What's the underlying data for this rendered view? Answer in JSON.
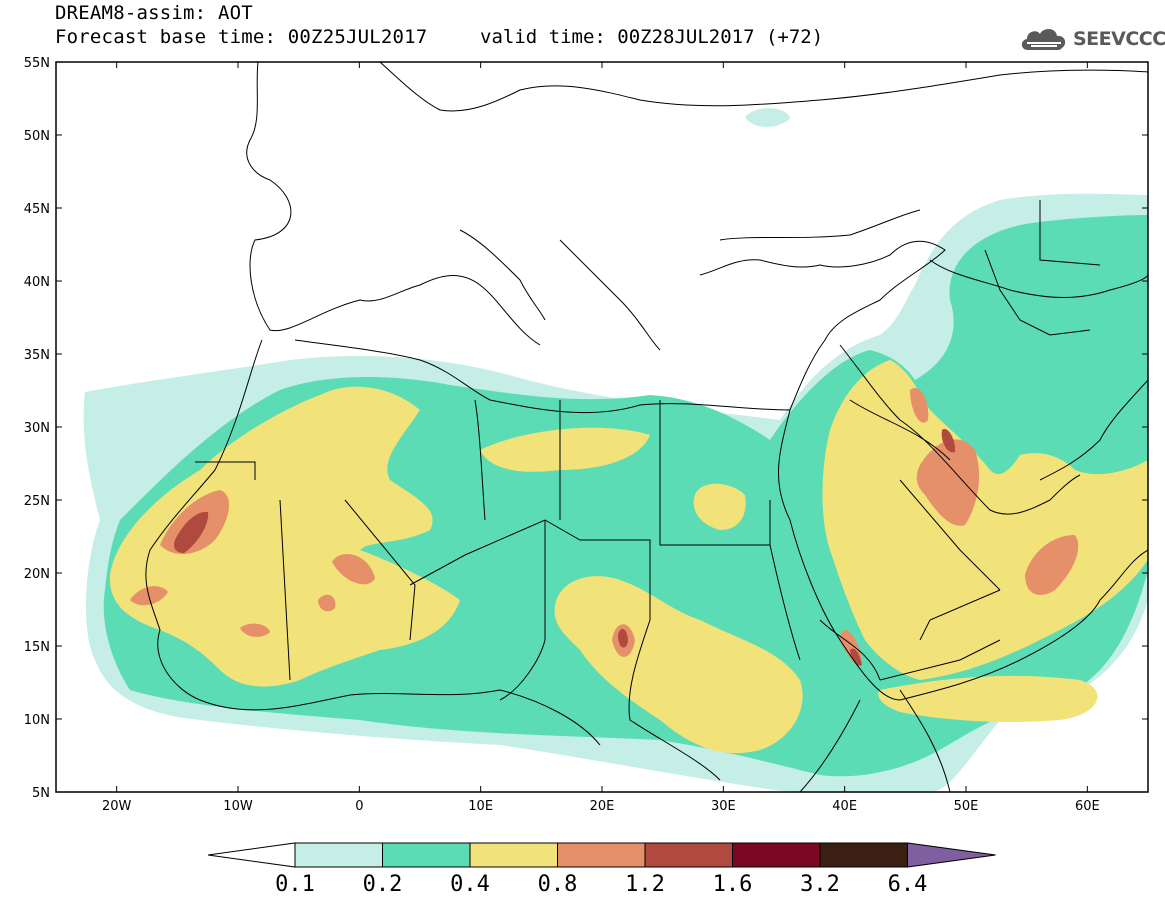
{
  "header": {
    "title": "DREAM8-assim: AOT",
    "base_time": "Forecast base time: 00Z25JUL2017",
    "valid_time": "valid time: 00Z28JUL2017 (+72)",
    "logo_text": "SEEVCCC",
    "logo_icon": "cloud-icon"
  },
  "axes": {
    "lat_labels": [
      "55N",
      "50N",
      "45N",
      "40N",
      "35N",
      "30N",
      "25N",
      "20N",
      "15N",
      "10N",
      "5N"
    ],
    "lon_labels": [
      "20W",
      "10W",
      "0",
      "10E",
      "20E",
      "30E",
      "40E",
      "50E",
      "60E"
    ],
    "lat_range": [
      5,
      55
    ],
    "lon_range": [
      -25,
      65
    ],
    "tick_lats": [
      55,
      50,
      45,
      40,
      35,
      30,
      25,
      20,
      15,
      10,
      5
    ],
    "tick_lons": [
      -20,
      -10,
      0,
      10,
      20,
      30,
      40,
      50,
      60
    ]
  },
  "colorbar": {
    "labels": [
      "0.1",
      "0.2",
      "0.4",
      "0.8",
      "1.2",
      "1.6",
      "3.2",
      "6.4"
    ],
    "colors": [
      "#c4eee6",
      "#5cdcb5",
      "#f2e27a",
      "#e6906a",
      "#b0493f",
      "#7b0722",
      "#3a1f12"
    ],
    "under_color": "#ffffff",
    "over_color": "#7f5fa0"
  },
  "field_colors": {
    "lvl1": "#c4eee6",
    "lvl2": "#5cdcb5",
    "lvl3": "#f2e27a",
    "lvl4": "#e6906a",
    "lvl5": "#b0493f",
    "lvl6": "#7b0722"
  }
}
